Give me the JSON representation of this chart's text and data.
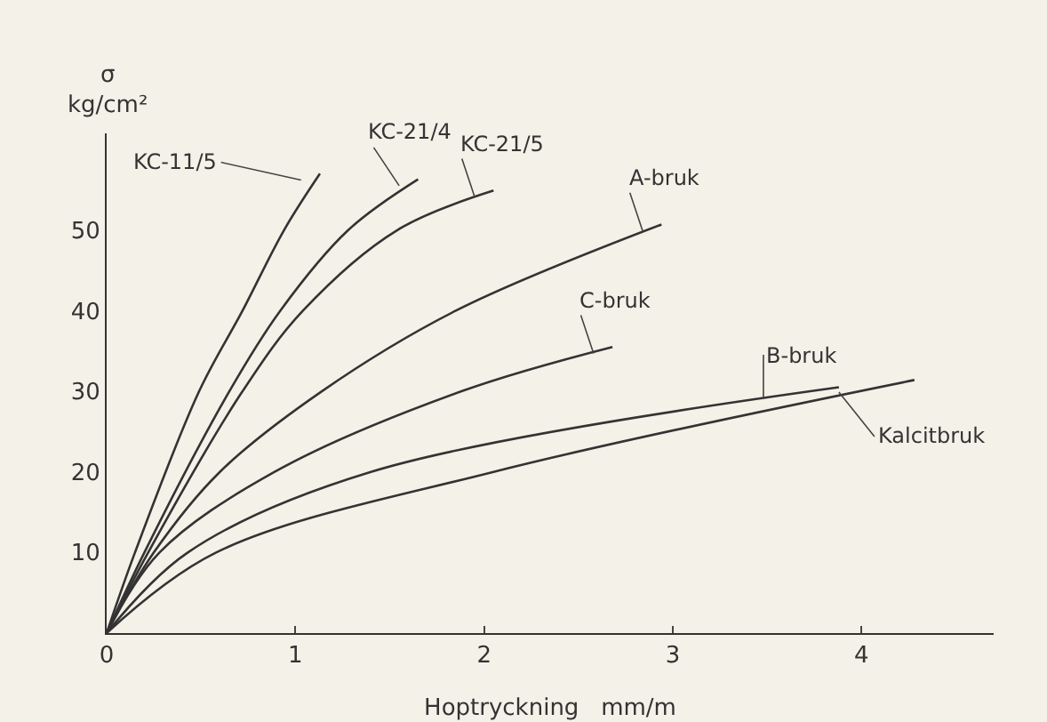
{
  "chart_data": {
    "type": "line",
    "xlabel": "Hoptryckning   mm/m",
    "ylabel": "σ\nkg/cm²",
    "xlim": [
      0,
      4.7
    ],
    "ylim": [
      0,
      62
    ],
    "xticks": [
      0,
      1,
      2,
      3,
      4
    ],
    "yticks": [
      10,
      20,
      30,
      40,
      50
    ],
    "grid": false,
    "legend": false,
    "marker": "none",
    "line_style": "solid",
    "series": [
      {
        "name": "KC-11/5",
        "color": "#333333",
        "x": [
          0,
          0.15,
          0.49,
          0.72,
          0.94,
          1.13
        ],
        "values": [
          0,
          10,
          30,
          40,
          50,
          57
        ]
      },
      {
        "name": "KC-21/4",
        "color": "#333333",
        "x": [
          0,
          0.2,
          0.65,
          0.92,
          1.28,
          1.65
        ],
        "values": [
          0,
          10,
          30,
          40,
          50,
          56.3
        ]
      },
      {
        "name": "KC-21/5",
        "color": "#333333",
        "x": [
          0,
          0.22,
          0.72,
          1.04,
          1.54,
          2.05
        ],
        "values": [
          0,
          10,
          30,
          40,
          50,
          54.9
        ]
      },
      {
        "name": "A-bruk",
        "color": "#333333",
        "x": [
          0,
          0.25,
          0.6,
          1.14,
          1.85,
          2.94
        ],
        "values": [
          0,
          10,
          20,
          30,
          40,
          50.7
        ]
      },
      {
        "name": "C-bruk",
        "color": "#333333",
        "x": [
          0,
          0.28,
          0.89,
          1.88,
          2.68
        ],
        "values": [
          0,
          10,
          20,
          30,
          35.5
        ]
      },
      {
        "name": "B-bruk",
        "color": "#333333",
        "x": [
          0,
          0.43,
          1.4,
          3.88
        ],
        "values": [
          0,
          10,
          20,
          30.5
        ]
      },
      {
        "name": "Kalcitbruk",
        "color": "#333333",
        "x": [
          0,
          0.58,
          2.05,
          4.28
        ],
        "values": [
          0,
          10,
          20,
          31.4
        ]
      }
    ]
  }
}
